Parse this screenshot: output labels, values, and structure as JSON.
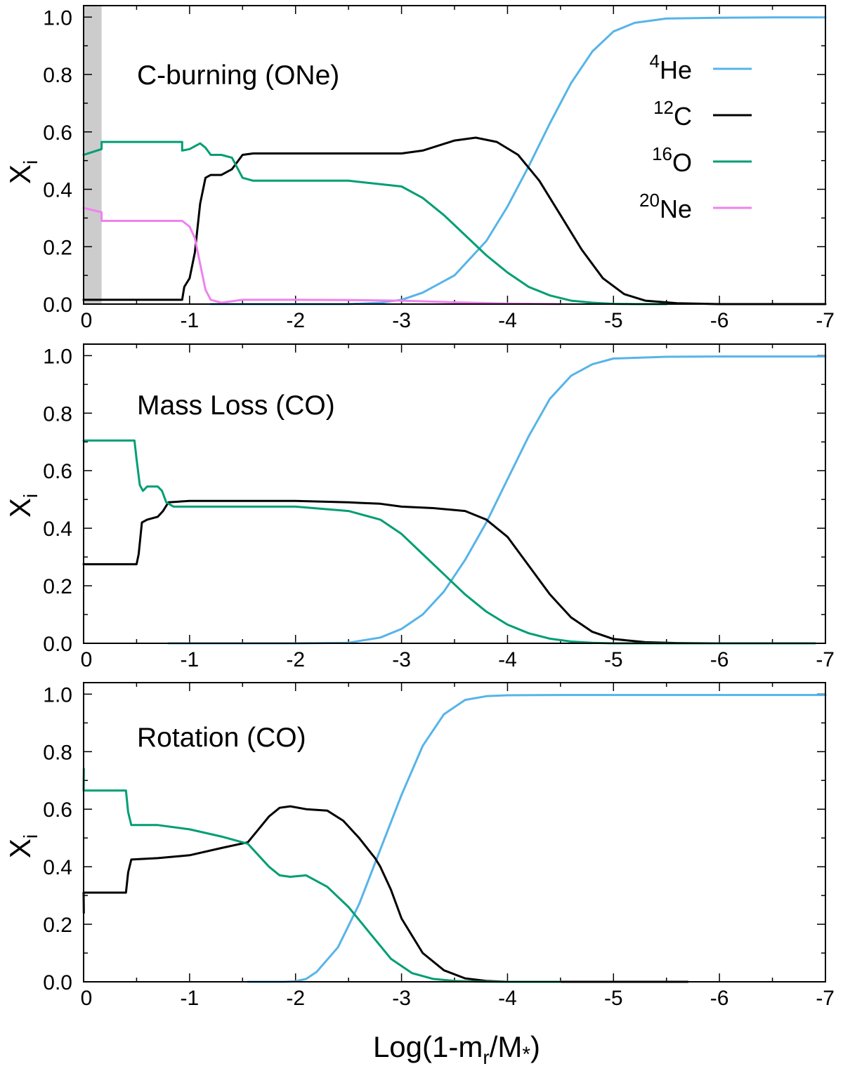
{
  "colors": {
    "He4": "#56b4e9",
    "C12": "#000000",
    "O16": "#009e73",
    "Ne20": "#ee82ee",
    "shade": "#cccccc"
  },
  "chart_data": [
    {
      "type": "line",
      "title": "C-burning (ONe)",
      "ylabel": "X",
      "ylabel_sub": "i",
      "xlim": [
        0,
        -7
      ],
      "ylim": [
        0,
        1.04
      ],
      "xticks": [
        "0",
        "-1",
        "-2",
        "-3",
        "-4",
        "-5",
        "-6",
        "-7"
      ],
      "yticks": [
        "0.0",
        "0.2",
        "0.4",
        "0.6",
        "0.8",
        "1.0"
      ],
      "shaded_region": [
        0,
        -0.17
      ],
      "legend": {
        "placement": "top-right",
        "entries": [
          {
            "mass": "4",
            "element": "He",
            "key": "He4"
          },
          {
            "mass": "12",
            "element": "C",
            "key": "C12"
          },
          {
            "mass": "16",
            "element": "O",
            "key": "O16"
          },
          {
            "mass": "20",
            "element": "Ne",
            "key": "Ne20"
          }
        ]
      },
      "series": [
        {
          "key": "He4",
          "x": [
            -1.2,
            -2.0,
            -2.5,
            -2.8,
            -3.0,
            -3.2,
            -3.5,
            -3.8,
            -4.0,
            -4.2,
            -4.4,
            -4.6,
            -4.8,
            -5.0,
            -5.2,
            -5.5,
            -6.0,
            -6.5,
            -7.0
          ],
          "y": [
            0.0,
            0.0,
            0.0,
            0.005,
            0.015,
            0.04,
            0.1,
            0.22,
            0.34,
            0.48,
            0.63,
            0.77,
            0.88,
            0.95,
            0.98,
            0.995,
            0.998,
            0.999,
            0.999
          ]
        },
        {
          "key": "C12",
          "x": [
            0,
            -0.93,
            -0.95,
            -1.0,
            -1.05,
            -1.1,
            -1.15,
            -1.2,
            -1.3,
            -1.4,
            -1.5,
            -1.6,
            -2.0,
            -2.5,
            -3.0,
            -3.2,
            -3.5,
            -3.7,
            -3.9,
            -4.1,
            -4.3,
            -4.5,
            -4.7,
            -4.9,
            -5.1,
            -5.3,
            -5.6,
            -6.0,
            -6.5,
            -7.0
          ],
          "y": [
            0.015,
            0.015,
            0.06,
            0.09,
            0.18,
            0.35,
            0.44,
            0.45,
            0.45,
            0.47,
            0.52,
            0.525,
            0.525,
            0.525,
            0.525,
            0.535,
            0.57,
            0.58,
            0.565,
            0.52,
            0.43,
            0.31,
            0.19,
            0.09,
            0.035,
            0.012,
            0.003,
            0.0,
            0.0,
            0.0
          ]
        },
        {
          "key": "O16",
          "x": [
            0,
            -0.17,
            -0.17,
            -0.93,
            -0.93,
            -1.0,
            -1.05,
            -1.1,
            -1.15,
            -1.2,
            -1.3,
            -1.4,
            -1.5,
            -1.6,
            -2.0,
            -2.5,
            -3.0,
            -3.2,
            -3.4,
            -3.6,
            -3.8,
            -4.0,
            -4.2,
            -4.4,
            -4.6,
            -4.8,
            -5.0,
            -5.2,
            -5.5
          ],
          "y": [
            0.52,
            0.54,
            0.565,
            0.565,
            0.535,
            0.54,
            0.55,
            0.56,
            0.545,
            0.52,
            0.52,
            0.51,
            0.44,
            0.43,
            0.43,
            0.43,
            0.41,
            0.37,
            0.31,
            0.24,
            0.17,
            0.11,
            0.06,
            0.03,
            0.012,
            0.005,
            0.001,
            0.0,
            0.0
          ]
        },
        {
          "key": "Ne20",
          "x": [
            0,
            -0.17,
            -0.17,
            -0.93,
            -1.0,
            -1.05,
            -1.1,
            -1.15,
            -1.2,
            -1.3,
            -1.5,
            -2.0,
            -2.5,
            -3.0,
            -3.5,
            -4.0,
            -4.5
          ],
          "y": [
            0.335,
            0.32,
            0.29,
            0.29,
            0.27,
            0.23,
            0.14,
            0.05,
            0.015,
            0.005,
            0.015,
            0.015,
            0.014,
            0.012,
            0.006,
            0.002,
            0.0
          ]
        }
      ]
    },
    {
      "type": "line",
      "title": "Mass Loss (CO)",
      "ylabel": "X",
      "ylabel_sub": "i",
      "xlim": [
        0,
        -7
      ],
      "ylim": [
        0,
        1.04
      ],
      "xticks": [
        "0",
        "-1",
        "-2",
        "-3",
        "-4",
        "-5",
        "-6",
        "-7"
      ],
      "yticks": [
        "0.0",
        "0.2",
        "0.4",
        "0.6",
        "0.8",
        "1.0"
      ],
      "series": [
        {
          "key": "He4",
          "x": [
            -0.8,
            -2.0,
            -2.5,
            -2.8,
            -3.0,
            -3.2,
            -3.4,
            -3.6,
            -3.8,
            -4.0,
            -4.2,
            -4.4,
            -4.6,
            -4.8,
            -5.0,
            -5.5,
            -6.0,
            -6.5,
            -7.0
          ],
          "y": [
            0.0,
            0.0,
            0.002,
            0.02,
            0.05,
            0.1,
            0.18,
            0.29,
            0.42,
            0.57,
            0.72,
            0.85,
            0.93,
            0.97,
            0.99,
            0.996,
            0.997,
            0.997,
            0.997
          ]
        },
        {
          "key": "C12",
          "x": [
            0,
            -0.5,
            -0.52,
            -0.55,
            -0.6,
            -0.7,
            -0.75,
            -0.8,
            -1.0,
            -2.0,
            -2.5,
            -2.8,
            -3.0,
            -3.3,
            -3.6,
            -3.8,
            -4.0,
            -4.2,
            -4.4,
            -4.6,
            -4.8,
            -5.0,
            -5.3,
            -5.6,
            -6.0,
            -6.9
          ],
          "y": [
            0.275,
            0.275,
            0.31,
            0.42,
            0.43,
            0.44,
            0.46,
            0.49,
            0.495,
            0.495,
            0.49,
            0.485,
            0.475,
            0.47,
            0.46,
            0.43,
            0.37,
            0.27,
            0.17,
            0.09,
            0.04,
            0.015,
            0.004,
            0.001,
            0.0,
            0.0
          ]
        },
        {
          "key": "O16",
          "x": [
            0,
            -0.48,
            -0.5,
            -0.53,
            -0.56,
            -0.6,
            -0.7,
            -0.74,
            -0.78,
            -0.85,
            -1.0,
            -2.0,
            -2.5,
            -2.8,
            -3.0,
            -3.2,
            -3.4,
            -3.6,
            -3.8,
            -4.0,
            -4.2,
            -4.4,
            -4.6,
            -4.8,
            -5.0,
            -5.5,
            -6.0,
            -6.9
          ],
          "y": [
            0.705,
            0.705,
            0.64,
            0.55,
            0.53,
            0.545,
            0.545,
            0.53,
            0.49,
            0.475,
            0.475,
            0.475,
            0.46,
            0.43,
            0.38,
            0.31,
            0.24,
            0.17,
            0.11,
            0.065,
            0.035,
            0.016,
            0.006,
            0.002,
            0.0,
            0.0,
            0.0,
            0.0
          ]
        }
      ]
    },
    {
      "type": "line",
      "title": "Rotation (CO)",
      "ylabel": "X",
      "ylabel_sub": "i",
      "xlabel": "Log(1-m",
      "xlabel_sub": "r",
      "xlabel_end": "/M",
      "xlabel_star": "*",
      "xlabel_close": ")",
      "xlim": [
        0,
        -7
      ],
      "ylim": [
        0,
        1.04
      ],
      "xticks": [
        "0",
        "-1",
        "-2",
        "-3",
        "-4",
        "-5",
        "-6",
        "-7"
      ],
      "yticks": [
        "0.0",
        "0.2",
        "0.4",
        "0.6",
        "0.8",
        "1.0"
      ],
      "series": [
        {
          "key": "He4",
          "x": [
            -1.55,
            -1.9,
            -2.0,
            -2.1,
            -2.2,
            -2.4,
            -2.6,
            -2.8,
            -3.0,
            -3.2,
            -3.4,
            -3.6,
            -3.8,
            -4.0,
            -4.5,
            -5.0,
            -6.0,
            -7.0
          ],
          "y": [
            0.0,
            0.0,
            0.002,
            0.01,
            0.035,
            0.12,
            0.27,
            0.46,
            0.65,
            0.82,
            0.93,
            0.98,
            0.993,
            0.996,
            0.997,
            0.997,
            0.997,
            0.997
          ]
        },
        {
          "key": "C12",
          "x": [
            -0.002,
            0,
            -0.4,
            -0.42,
            -0.45,
            -0.7,
            -1.0,
            -1.3,
            -1.55,
            -1.65,
            -1.75,
            -1.85,
            -1.95,
            -2.1,
            -2.3,
            -2.45,
            -2.6,
            -2.75,
            -2.8,
            -2.9,
            -3.0,
            -3.2,
            -3.4,
            -3.6,
            -3.8,
            -4.0,
            -4.5,
            -5.0,
            -5.7
          ],
          "y": [
            0.24,
            0.31,
            0.31,
            0.38,
            0.425,
            0.43,
            0.44,
            0.465,
            0.485,
            0.53,
            0.575,
            0.605,
            0.61,
            0.6,
            0.595,
            0.56,
            0.5,
            0.43,
            0.4,
            0.32,
            0.22,
            0.1,
            0.04,
            0.012,
            0.003,
            0.0,
            0.0,
            0.0,
            0.0
          ]
        },
        {
          "key": "O16",
          "x": [
            -0.002,
            0,
            -0.4,
            -0.42,
            -0.45,
            -0.7,
            -1.0,
            -1.3,
            -1.55,
            -1.65,
            -1.75,
            -1.85,
            -1.95,
            -2.1,
            -2.3,
            -2.5,
            -2.7,
            -2.9,
            -3.1,
            -3.3,
            -3.5,
            -3.7,
            -4.0,
            -4.5
          ],
          "y": [
            0.74,
            0.665,
            0.665,
            0.59,
            0.545,
            0.545,
            0.53,
            0.505,
            0.48,
            0.44,
            0.4,
            0.37,
            0.365,
            0.37,
            0.33,
            0.26,
            0.17,
            0.08,
            0.03,
            0.01,
            0.003,
            0.001,
            0.0,
            0.0
          ]
        }
      ]
    }
  ]
}
